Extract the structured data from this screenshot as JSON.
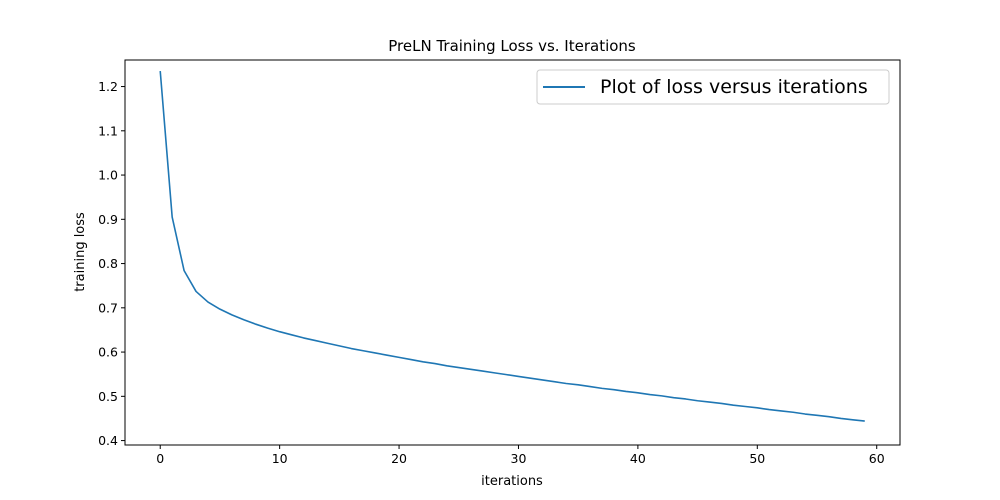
{
  "chart_data": {
    "type": "line",
    "title": "PreLN Training Loss vs. Iterations",
    "xlabel": "iterations",
    "ylabel": "training loss",
    "xlim": [
      -2.95,
      61.95
    ],
    "ylim": [
      0.39,
      1.26
    ],
    "xticks": [
      0,
      10,
      20,
      30,
      40,
      50,
      60
    ],
    "yticks": [
      0.4,
      0.5,
      0.6,
      0.7,
      0.8,
      0.9,
      1.0,
      1.1,
      1.2
    ],
    "xtick_labels": [
      "0",
      "10",
      "20",
      "30",
      "40",
      "50",
      "60"
    ],
    "ytick_labels": [
      "0.4",
      "0.5",
      "0.6",
      "0.7",
      "0.8",
      "0.9",
      "1.0",
      "1.1",
      "1.2"
    ],
    "grid": false,
    "legend_position": "top-right",
    "color": "#1f77b4",
    "series": [
      {
        "name": "Plot of loss versus iterations",
        "x": [
          0,
          1,
          2,
          3,
          4,
          5,
          6,
          7,
          8,
          9,
          10,
          11,
          12,
          13,
          14,
          15,
          16,
          17,
          18,
          19,
          20,
          21,
          22,
          23,
          24,
          25,
          26,
          27,
          28,
          29,
          30,
          31,
          32,
          33,
          34,
          35,
          36,
          37,
          38,
          39,
          40,
          41,
          42,
          43,
          44,
          45,
          46,
          47,
          48,
          49,
          50,
          51,
          52,
          53,
          54,
          55,
          56,
          57,
          58,
          59
        ],
        "values": [
          1.235,
          0.905,
          0.784,
          0.737,
          0.713,
          0.697,
          0.684,
          0.673,
          0.663,
          0.654,
          0.646,
          0.639,
          0.632,
          0.626,
          0.62,
          0.614,
          0.608,
          0.603,
          0.598,
          0.593,
          0.588,
          0.583,
          0.578,
          0.574,
          0.569,
          0.565,
          0.561,
          0.557,
          0.553,
          0.549,
          0.545,
          0.541,
          0.537,
          0.533,
          0.529,
          0.526,
          0.522,
          0.518,
          0.515,
          0.511,
          0.508,
          0.504,
          0.501,
          0.497,
          0.494,
          0.49,
          0.487,
          0.484,
          0.48,
          0.477,
          0.474,
          0.47,
          0.467,
          0.464,
          0.46,
          0.457,
          0.454,
          0.45,
          0.447,
          0.444
        ]
      }
    ]
  }
}
